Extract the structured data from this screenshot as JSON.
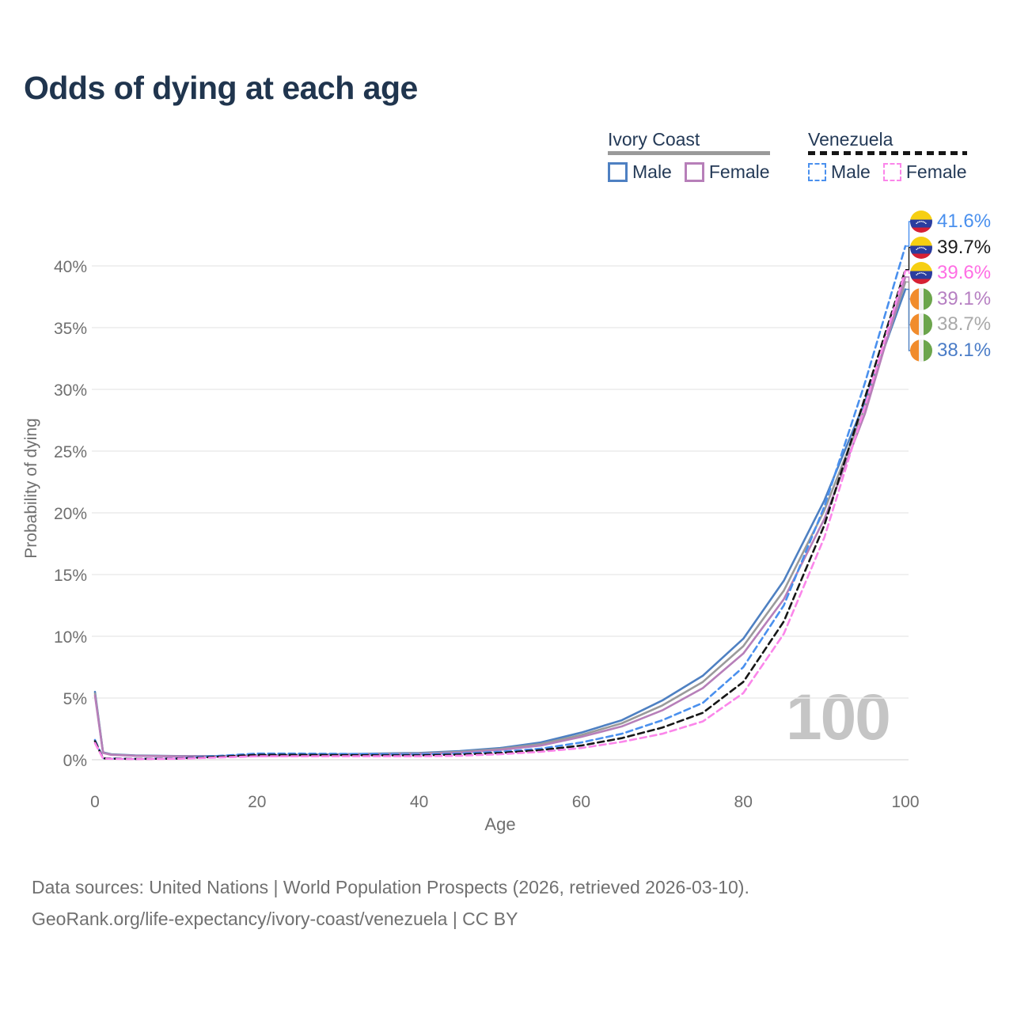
{
  "title": "Odds of dying at each age",
  "watermark": "100",
  "legend": {
    "groups": [
      {
        "label": "Ivory Coast",
        "line_style": "solid",
        "line_color": "#9a9a9a",
        "items": [
          {
            "label": "Male",
            "color": "#4e80c2",
            "dashed": false
          },
          {
            "label": "Female",
            "color": "#b77fb9",
            "dashed": false
          }
        ]
      },
      {
        "label": "Venezuela",
        "line_style": "dashed",
        "line_color": "#161616",
        "items": [
          {
            "label": "Male",
            "color": "#4a90ee",
            "dashed": true
          },
          {
            "label": "Female",
            "color": "#fb86ea",
            "dashed": true
          }
        ]
      }
    ]
  },
  "end_labels": [
    {
      "value": "41.6%",
      "flag": "venezuela",
      "color": "#4a90ee"
    },
    {
      "value": "39.7%",
      "flag": "venezuela",
      "color": "#1c1c1c"
    },
    {
      "value": "39.6%",
      "flag": "venezuela",
      "color": "#ff6ee4"
    },
    {
      "value": "39.1%",
      "flag": "ivory-coast",
      "color": "#b67fc2"
    },
    {
      "value": "38.7%",
      "flag": "ivory-coast",
      "color": "#a9a9a9"
    },
    {
      "value": "38.1%",
      "flag": "ivory-coast",
      "color": "#4a7cc7"
    }
  ],
  "footer": {
    "line1": "Data sources: United Nations | World Population Prospects (2026, retrieved 2026-03-10).",
    "line2": "GeoRank.org/life-expectancy/ivory-coast/venezuela | CC BY"
  },
  "chart_data": {
    "type": "line",
    "title": "Odds of dying at each age",
    "xlabel": "Age",
    "ylabel": "Probability of dying",
    "x_ticks": [
      0,
      20,
      40,
      60,
      80,
      100
    ],
    "y_ticks": [
      "0%",
      "5%",
      "10%",
      "15%",
      "20%",
      "25%",
      "30%",
      "35%",
      "40%"
    ],
    "xlim": [
      0,
      100
    ],
    "ylim_pct": [
      0,
      43
    ],
    "grid": "horizontal-only",
    "legend_position": "top-right",
    "ages": [
      0,
      1,
      2,
      5,
      10,
      15,
      20,
      25,
      30,
      35,
      40,
      45,
      50,
      55,
      60,
      65,
      70,
      75,
      80,
      85,
      90,
      95,
      100
    ],
    "series": [
      {
        "name": "Venezuela Male",
        "country": "Venezuela",
        "sex": "male",
        "color": "#4a90ee",
        "dashed": true,
        "end_value_pct": 41.6,
        "values_pct": [
          1.6,
          0.12,
          0.1,
          0.08,
          0.1,
          0.3,
          0.5,
          0.5,
          0.48,
          0.45,
          0.45,
          0.5,
          0.65,
          0.9,
          1.4,
          2.1,
          3.2,
          4.6,
          7.5,
          12.5,
          20.5,
          30.5,
          41.6
        ]
      },
      {
        "name": "Venezuela Total",
        "country": "Venezuela",
        "sex": "both",
        "color": "#161616",
        "dashed": true,
        "end_value_pct": 39.7,
        "values_pct": [
          1.5,
          0.11,
          0.09,
          0.07,
          0.09,
          0.24,
          0.4,
          0.4,
          0.38,
          0.36,
          0.36,
          0.42,
          0.55,
          0.78,
          1.15,
          1.75,
          2.6,
          3.8,
          6.3,
          11.2,
          19.0,
          29.3,
          39.7
        ]
      },
      {
        "name": "Venezuela Female",
        "country": "Venezuela",
        "sex": "female",
        "color": "#fb86ea",
        "dashed": true,
        "end_value_pct": 39.6,
        "values_pct": [
          1.35,
          0.1,
          0.08,
          0.06,
          0.08,
          0.18,
          0.28,
          0.28,
          0.28,
          0.28,
          0.28,
          0.33,
          0.45,
          0.65,
          0.95,
          1.45,
          2.1,
          3.1,
          5.4,
          10.2,
          18.0,
          28.6,
          39.6
        ]
      },
      {
        "name": "Ivory Coast Female",
        "country": "Ivory Coast",
        "sex": "female",
        "color": "#b77fb9",
        "dashed": false,
        "end_value_pct": 39.1,
        "values_pct": [
          5.2,
          0.55,
          0.4,
          0.32,
          0.27,
          0.27,
          0.3,
          0.33,
          0.38,
          0.42,
          0.47,
          0.58,
          0.8,
          1.15,
          1.85,
          2.7,
          4.0,
          5.8,
          8.6,
          13.0,
          19.5,
          28.0,
          39.1
        ]
      },
      {
        "name": "Ivory Coast Total",
        "country": "Ivory Coast",
        "sex": "both",
        "color": "#9a9a9a",
        "dashed": false,
        "end_value_pct": 38.7,
        "values_pct": [
          5.35,
          0.58,
          0.42,
          0.33,
          0.28,
          0.28,
          0.32,
          0.36,
          0.41,
          0.46,
          0.51,
          0.64,
          0.87,
          1.27,
          2.0,
          2.95,
          4.4,
          6.3,
          9.2,
          13.7,
          20.2,
          28.5,
          38.7
        ]
      },
      {
        "name": "Ivory Coast Male",
        "country": "Ivory Coast",
        "sex": "male",
        "color": "#4e80c2",
        "dashed": false,
        "end_value_pct": 38.1,
        "values_pct": [
          5.5,
          0.6,
          0.45,
          0.35,
          0.3,
          0.3,
          0.35,
          0.4,
          0.45,
          0.5,
          0.55,
          0.7,
          0.95,
          1.4,
          2.2,
          3.2,
          4.8,
          6.8,
          9.8,
          14.5,
          21.0,
          29.0,
          38.1
        ]
      }
    ]
  }
}
